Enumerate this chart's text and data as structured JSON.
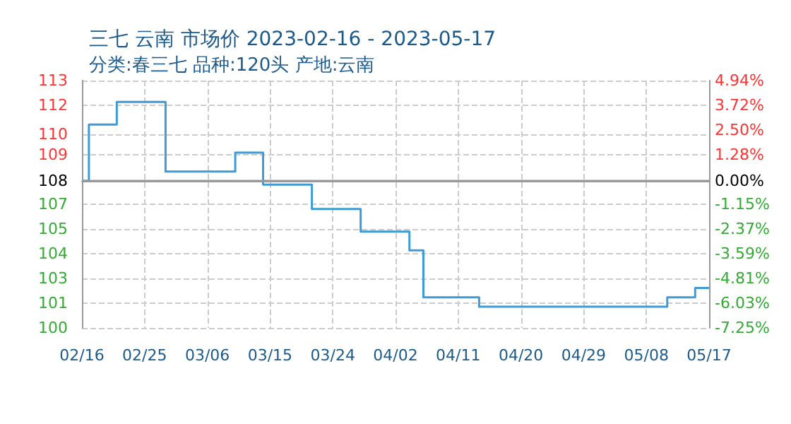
{
  "chart_data": {
    "type": "step",
    "title": "三七 云南 市场价 2023-02-16 - 2023-05-17",
    "subtitle": "分类:春三七 品种:120头 产地:云南",
    "x": [
      "2023-02-16",
      "2023-02-17",
      "2023-02-20",
      "2023-02-21",
      "2023-02-27",
      "2023-02-28",
      "2023-03-09",
      "2023-03-10",
      "2023-03-13",
      "2023-03-14",
      "2023-03-20",
      "2023-03-21",
      "2023-03-27",
      "2023-03-28",
      "2023-04-03",
      "2023-04-04",
      "2023-04-05",
      "2023-04-06",
      "2023-04-13",
      "2023-04-14",
      "2023-05-10",
      "2023-05-11",
      "2023-05-14",
      "2023-05-15",
      "2023-05-17"
    ],
    "series": [
      {
        "color": "#3e9bd6",
        "values": [
          108,
          111,
          111,
          112.2,
          112.2,
          108.5,
          108.5,
          109.5,
          109.5,
          107.8,
          107.8,
          106.5,
          106.5,
          105.3,
          105.3,
          104.3,
          104.3,
          101.8,
          101.8,
          101.3,
          101.3,
          101.8,
          101.8,
          102.3,
          102.3
        ]
      }
    ],
    "xlim": [
      "2023-02-16",
      "2023-05-17"
    ],
    "xticks": [
      {
        "value": "2023-02-16",
        "label": "02/16"
      },
      {
        "value": "2023-02-25",
        "label": "02/25"
      },
      {
        "value": "2023-03-06",
        "label": "03/06"
      },
      {
        "value": "2023-03-15",
        "label": "03/15"
      },
      {
        "value": "2023-03-24",
        "label": "03/24"
      },
      {
        "value": "2023-04-02",
        "label": "04/02"
      },
      {
        "value": "2023-04-11",
        "label": "04/11"
      },
      {
        "value": "2023-04-20",
        "label": "04/20"
      },
      {
        "value": "2023-04-29",
        "label": "04/29"
      },
      {
        "value": "2023-05-08",
        "label": "05/08"
      },
      {
        "value": "2023-05-17",
        "label": "05/17"
      }
    ],
    "ylim": [
      100.17,
      113.34
    ],
    "yticks": [
      {
        "value": 100.17,
        "label": "100"
      },
      {
        "value": 101.49,
        "label": "101"
      },
      {
        "value": 102.8,
        "label": "103"
      },
      {
        "value": 104.12,
        "label": "104"
      },
      {
        "value": 105.44,
        "label": "105"
      },
      {
        "value": 106.76,
        "label": "107"
      },
      {
        "value": 108,
        "label": "108"
      },
      {
        "value": 109.38,
        "label": "109"
      },
      {
        "value": 110.49,
        "label": "110"
      },
      {
        "value": 112.02,
        "label": "112"
      },
      {
        "value": 113.34,
        "label": "113"
      }
    ],
    "y2lim": [
      -7.25,
      4.94
    ],
    "y2ticks": [
      {
        "value": -7.25,
        "label": "-7.25%"
      },
      {
        "value": -6.03,
        "label": "-6.03%"
      },
      {
        "value": -4.81,
        "label": "-4.81%"
      },
      {
        "value": -3.59,
        "label": "-3.59%"
      },
      {
        "value": -2.37,
        "label": "-2.37%"
      },
      {
        "value": -1.15,
        "label": "-1.15%"
      },
      {
        "value": 0,
        "label": "0.00%"
      },
      {
        "value": 1.28,
        "label": "1.28%"
      },
      {
        "value": 2.5,
        "label": "2.50%"
      },
      {
        "value": 3.72,
        "label": "3.72%"
      },
      {
        "value": 4.94,
        "label": "4.94%"
      }
    ],
    "ref_lines": [
      {
        "axis": "y",
        "value": 108,
        "color": "#999999"
      }
    ],
    "grid": true,
    "marker": "none",
    "line_style": "solid"
  }
}
